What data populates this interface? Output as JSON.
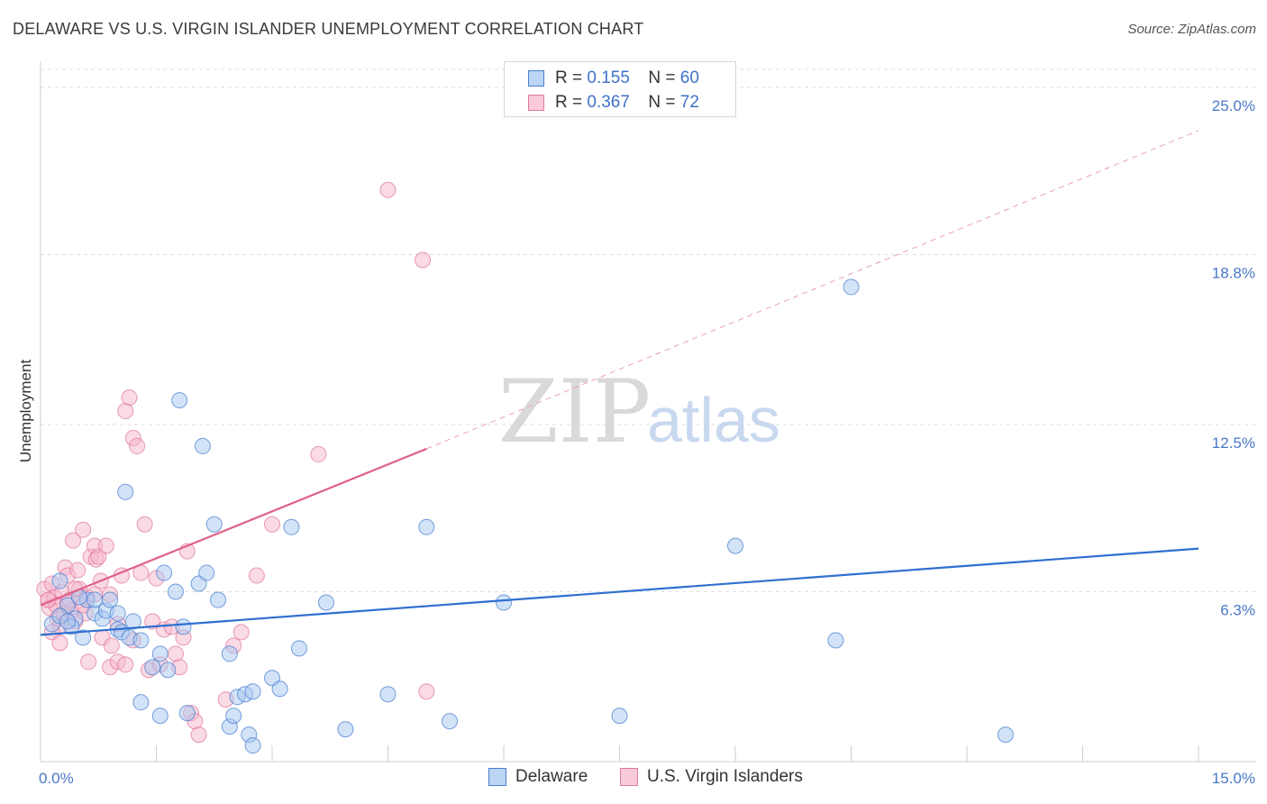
{
  "title": "DELAWARE VS U.S. VIRGIN ISLANDER UNEMPLOYMENT CORRELATION CHART",
  "source": "Source: ZipAtlas.com",
  "watermark": {
    "zip": "ZIP",
    "atlas": "atlas"
  },
  "legend": {
    "r_label": "R =",
    "n_label": "N =",
    "series1": {
      "r": "0.155",
      "n": "60"
    },
    "series2": {
      "r": "0.367",
      "n": "72"
    }
  },
  "colors": {
    "blue_fill": "#a8c8f0",
    "blue_stroke": "#4a7fd0",
    "blue_line": "#2f6fd0",
    "pink_fill": "#f6b6cb",
    "pink_stroke": "#e07a9c",
    "pink_line": "#e0608a",
    "tick_text": "#4a78c8",
    "grid": "#dddddd"
  },
  "chart_data": {
    "type": "scatter",
    "title": "DELAWARE VS U.S. VIRGIN ISLANDER UNEMPLOYMENT CORRELATION CHART",
    "xlabel": "",
    "ylabel": "Unemployment",
    "xlim": [
      0,
      15
    ],
    "ylim": [
      0,
      25
    ],
    "x_tick_labels": [
      "0.0%",
      "15.0%"
    ],
    "y_ticks": [
      6.3,
      12.5,
      18.8,
      25.0
    ],
    "y_tick_labels": [
      "6.3%",
      "12.5%",
      "18.8%",
      "25.0%"
    ],
    "series": [
      {
        "name": "Delaware",
        "r": 0.155,
        "n": 60,
        "trend": {
          "x": [
            0,
            15
          ],
          "y": [
            4.7,
            7.9
          ],
          "style": "solid"
        },
        "points": [
          [
            0.15,
            5.1
          ],
          [
            0.25,
            6.7
          ],
          [
            0.35,
            5.8
          ],
          [
            0.45,
            5.3
          ],
          [
            0.55,
            4.6
          ],
          [
            0.6,
            6.0
          ],
          [
            0.7,
            5.5
          ],
          [
            0.8,
            5.3
          ],
          [
            0.25,
            5.4
          ],
          [
            0.4,
            5.0
          ],
          [
            0.5,
            6.1
          ],
          [
            0.7,
            6.0
          ],
          [
            0.85,
            5.6
          ],
          [
            1.0,
            4.9
          ],
          [
            1.05,
            4.8
          ],
          [
            1.15,
            4.6
          ],
          [
            1.1,
            10.0
          ],
          [
            1.3,
            4.5
          ],
          [
            1.45,
            3.5
          ],
          [
            1.55,
            4.0
          ],
          [
            1.6,
            7.0
          ],
          [
            1.75,
            6.3
          ],
          [
            1.8,
            13.4
          ],
          [
            1.85,
            5.0
          ],
          [
            2.05,
            6.6
          ],
          [
            2.1,
            11.7
          ],
          [
            2.15,
            7.0
          ],
          [
            2.25,
            8.8
          ],
          [
            2.3,
            6.0
          ],
          [
            2.45,
            4.0
          ],
          [
            2.55,
            2.4
          ],
          [
            2.65,
            2.5
          ],
          [
            2.75,
            2.6
          ],
          [
            3.0,
            3.1
          ],
          [
            3.1,
            2.7
          ],
          [
            3.25,
            8.7
          ],
          [
            3.35,
            4.2
          ],
          [
            3.7,
            5.9
          ],
          [
            3.95,
            1.2
          ],
          [
            4.5,
            2.5
          ],
          [
            5.0,
            8.7
          ],
          [
            5.3,
            1.5
          ],
          [
            6.0,
            5.9
          ],
          [
            7.5,
            1.7
          ],
          [
            9.0,
            8.0
          ],
          [
            10.3,
            4.5
          ],
          [
            10.5,
            17.6
          ],
          [
            12.5,
            1.0
          ],
          [
            1.3,
            2.2
          ],
          [
            1.55,
            1.7
          ],
          [
            1.65,
            3.4
          ],
          [
            1.9,
            1.8
          ],
          [
            2.45,
            1.3
          ],
          [
            2.5,
            1.7
          ],
          [
            2.7,
            1.0
          ],
          [
            2.75,
            0.6
          ],
          [
            0.9,
            6.0
          ],
          [
            1.0,
            5.5
          ],
          [
            1.2,
            5.2
          ],
          [
            0.35,
            5.2
          ]
        ]
      },
      {
        "name": "U.S. Virgin Islanders",
        "r": 0.367,
        "n": 72,
        "trend": {
          "x": [
            0,
            5.0
          ],
          "y": [
            5.8,
            11.6
          ],
          "style": "solid"
        },
        "trend_extended": {
          "x": [
            5.0,
            15
          ],
          "y": [
            11.6,
            23.4
          ],
          "style": "dashed"
        },
        "points": [
          [
            0.05,
            6.4
          ],
          [
            0.1,
            6.0
          ],
          [
            0.12,
            5.7
          ],
          [
            0.15,
            6.6
          ],
          [
            0.18,
            6.1
          ],
          [
            0.2,
            5.8
          ],
          [
            0.22,
            5.3
          ],
          [
            0.25,
            5.0
          ],
          [
            0.28,
            6.3
          ],
          [
            0.3,
            5.5
          ],
          [
            0.32,
            7.2
          ],
          [
            0.35,
            6.9
          ],
          [
            0.38,
            6.0
          ],
          [
            0.4,
            5.6
          ],
          [
            0.42,
            8.2
          ],
          [
            0.45,
            5.2
          ],
          [
            0.48,
            7.1
          ],
          [
            0.5,
            6.4
          ],
          [
            0.55,
            8.6
          ],
          [
            0.58,
            5.5
          ],
          [
            0.6,
            6.1
          ],
          [
            0.62,
            3.7
          ],
          [
            0.65,
            7.6
          ],
          [
            0.7,
            8.0
          ],
          [
            0.72,
            7.5
          ],
          [
            0.75,
            7.6
          ],
          [
            0.78,
            6.7
          ],
          [
            0.8,
            4.6
          ],
          [
            0.85,
            8.0
          ],
          [
            0.9,
            6.2
          ],
          [
            0.92,
            4.3
          ],
          [
            1.0,
            5.1
          ],
          [
            1.05,
            6.9
          ],
          [
            1.1,
            13.0
          ],
          [
            1.15,
            13.5
          ],
          [
            1.2,
            12.0
          ],
          [
            1.25,
            11.7
          ],
          [
            1.3,
            7.0
          ],
          [
            1.35,
            8.8
          ],
          [
            1.4,
            3.4
          ],
          [
            1.45,
            5.2
          ],
          [
            1.5,
            6.8
          ],
          [
            1.55,
            3.6
          ],
          [
            1.6,
            4.9
          ],
          [
            1.7,
            5.0
          ],
          [
            1.75,
            4.0
          ],
          [
            1.8,
            3.5
          ],
          [
            1.85,
            4.6
          ],
          [
            1.9,
            7.8
          ],
          [
            1.95,
            1.8
          ],
          [
            2.0,
            1.5
          ],
          [
            2.05,
            1.0
          ],
          [
            2.4,
            2.3
          ],
          [
            2.5,
            4.3
          ],
          [
            2.6,
            4.8
          ],
          [
            2.8,
            6.9
          ],
          [
            3.0,
            8.8
          ],
          [
            3.6,
            11.4
          ],
          [
            4.5,
            21.2
          ],
          [
            4.95,
            18.6
          ],
          [
            5.0,
            2.6
          ],
          [
            1.2,
            4.5
          ],
          [
            0.15,
            4.8
          ],
          [
            0.25,
            4.4
          ],
          [
            0.35,
            5.9
          ],
          [
            0.45,
            6.4
          ],
          [
            0.55,
            5.8
          ],
          [
            0.7,
            6.2
          ],
          [
            0.9,
            3.5
          ],
          [
            1.0,
            3.7
          ],
          [
            1.1,
            3.6
          ],
          [
            0.1,
            6.0
          ]
        ]
      }
    ]
  }
}
